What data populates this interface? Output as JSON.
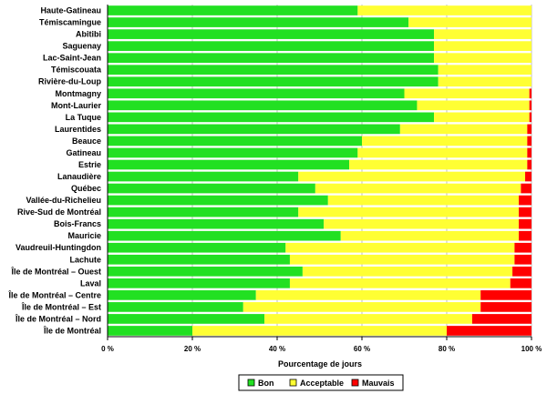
{
  "chart_data": {
    "type": "bar",
    "orientation": "horizontal",
    "stacked": true,
    "categories": [
      "Haute-Gatineau",
      "Témiscamingue",
      "Abitibi",
      "Saguenay",
      "Lac-Saint-Jean",
      "Témiscouata",
      "Rivière-du-Loup",
      "Montmagny",
      "Mont-Laurier",
      "La Tuque",
      "Laurentides",
      "Beauce",
      "Gatineau",
      "Estrie",
      "Lanaudière",
      "Québec",
      "Vallée-du-Richelieu",
      "Rive-Sud de Montréal",
      "Bois-Francs",
      "Mauricie",
      "Vaudreuil-Huntingdon",
      "Lachute",
      "Île de Montréal – Ouest",
      "Laval",
      "Île de Montréal – Centre",
      "Île de Montréal – Est",
      "Île de Montréal – Nord",
      "Île de Montréal"
    ],
    "series": [
      {
        "name": "Bon",
        "color": "#22e022",
        "values": [
          59,
          71,
          77,
          77,
          77,
          78,
          78,
          70,
          73,
          77,
          69,
          60,
          59,
          57,
          45,
          49,
          52,
          45,
          51,
          55,
          42,
          43,
          46,
          43,
          35,
          32,
          37,
          20
        ]
      },
      {
        "name": "Acceptable",
        "color": "#ffff33",
        "values": [
          41,
          29,
          23,
          23,
          23,
          22,
          22,
          29.5,
          26.5,
          22.5,
          30,
          39,
          40,
          42,
          53.5,
          48.5,
          45,
          52,
          46,
          42,
          54,
          53,
          49.5,
          52,
          53,
          56,
          49,
          60
        ]
      },
      {
        "name": "Mauvais",
        "color": "#ff0000",
        "values": [
          0,
          0,
          0,
          0,
          0,
          0,
          0,
          0.5,
          0.5,
          0.5,
          1,
          1,
          1,
          1,
          1.5,
          2.5,
          3,
          3,
          3,
          3,
          4,
          4,
          4.5,
          5,
          12,
          12,
          14,
          20
        ]
      }
    ],
    "xlabel": "Pourcentage de jours",
    "ylabel": "",
    "xlim": [
      0,
      100
    ],
    "x_ticks": [
      "0 %",
      "20 %",
      "40 %",
      "60 %",
      "80 %",
      "100 %"
    ],
    "grid": "vertical",
    "legend": "bottom",
    "legend_entries": [
      "Bon",
      "Acceptable",
      "Mauvais"
    ]
  }
}
